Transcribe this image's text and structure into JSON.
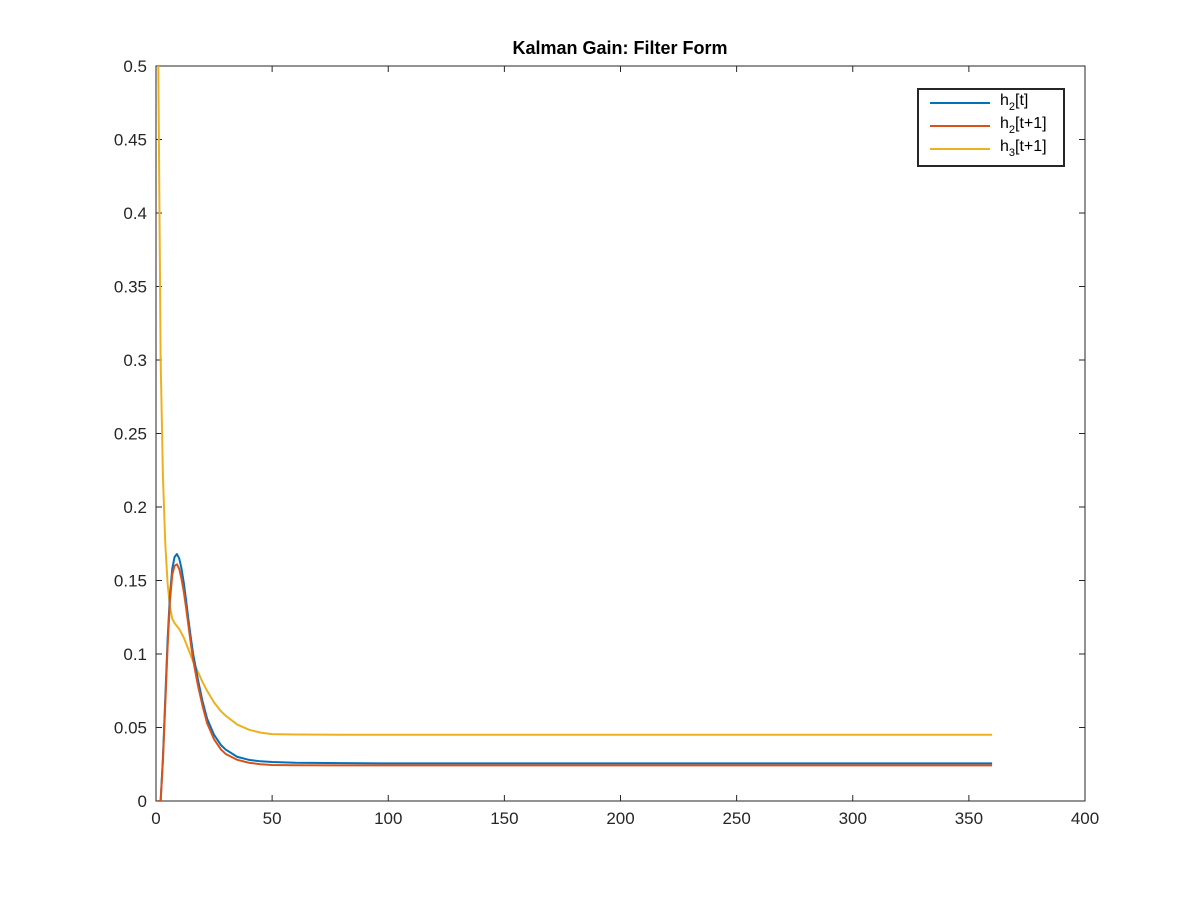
{
  "chart_data": {
    "type": "line",
    "title": "Kalman Gain: Filter Form",
    "xlabel": "",
    "ylabel": "",
    "xlim": [
      0,
      400
    ],
    "ylim": [
      0,
      0.5
    ],
    "xticks": [
      0,
      50,
      100,
      150,
      200,
      250,
      300,
      350,
      400
    ],
    "yticks": [
      0,
      0.05,
      0.1,
      0.15,
      0.2,
      0.25,
      0.3,
      0.35,
      0.4,
      0.45,
      0.5
    ],
    "xtick_labels": [
      "0",
      "50",
      "100",
      "150",
      "200",
      "250",
      "300",
      "350",
      "400"
    ],
    "ytick_labels": [
      "0",
      "0.05",
      "0.1",
      "0.15",
      "0.2",
      "0.25",
      "0.3",
      "0.35",
      "0.4",
      "0.45",
      "0.5"
    ],
    "grid": false,
    "legend_position": "top-right",
    "series": [
      {
        "legend": {
          "base": "h",
          "sub": "2",
          "suffix": "[t]"
        },
        "color": "#0072BD",
        "points": [
          [
            1,
            0
          ],
          [
            2,
            0
          ],
          [
            3,
            0.03
          ],
          [
            4,
            0.07
          ],
          [
            5,
            0.11
          ],
          [
            6,
            0.14
          ],
          [
            7,
            0.158
          ],
          [
            8,
            0.166
          ],
          [
            9,
            0.168
          ],
          [
            10,
            0.165
          ],
          [
            11,
            0.158
          ],
          [
            12,
            0.148
          ],
          [
            13,
            0.136
          ],
          [
            14,
            0.123
          ],
          [
            15,
            0.111
          ],
          [
            16,
            0.1
          ],
          [
            18,
            0.083
          ],
          [
            20,
            0.068
          ],
          [
            22,
            0.056
          ],
          [
            25,
            0.045
          ],
          [
            28,
            0.038
          ],
          [
            30,
            0.035
          ],
          [
            35,
            0.03
          ],
          [
            40,
            0.028
          ],
          [
            45,
            0.027
          ],
          [
            50,
            0.0265
          ],
          [
            60,
            0.026
          ],
          [
            80,
            0.0258
          ],
          [
            100,
            0.0256
          ],
          [
            150,
            0.0256
          ],
          [
            200,
            0.0256
          ],
          [
            250,
            0.0256
          ],
          [
            300,
            0.0256
          ],
          [
            360,
            0.0256
          ]
        ]
      },
      {
        "legend": {
          "base": "h",
          "sub": "2",
          "suffix": "[t+1]"
        },
        "color": "#D95319",
        "points": [
          [
            1,
            0
          ],
          [
            2,
            0
          ],
          [
            3,
            0.028
          ],
          [
            4,
            0.066
          ],
          [
            5,
            0.105
          ],
          [
            6,
            0.136
          ],
          [
            7,
            0.154
          ],
          [
            8,
            0.16
          ],
          [
            9,
            0.161
          ],
          [
            10,
            0.158
          ],
          [
            11,
            0.151
          ],
          [
            12,
            0.142
          ],
          [
            13,
            0.131
          ],
          [
            14,
            0.119
          ],
          [
            15,
            0.107
          ],
          [
            16,
            0.096
          ],
          [
            18,
            0.079
          ],
          [
            20,
            0.065
          ],
          [
            22,
            0.053
          ],
          [
            25,
            0.042
          ],
          [
            28,
            0.035
          ],
          [
            30,
            0.032
          ],
          [
            35,
            0.028
          ],
          [
            40,
            0.026
          ],
          [
            45,
            0.025
          ],
          [
            50,
            0.0245
          ],
          [
            60,
            0.0243
          ],
          [
            80,
            0.0242
          ],
          [
            100,
            0.0242
          ],
          [
            150,
            0.0242
          ],
          [
            200,
            0.0242
          ],
          [
            250,
            0.0242
          ],
          [
            300,
            0.0242
          ],
          [
            360,
            0.0242
          ]
        ]
      },
      {
        "legend": {
          "base": "h",
          "sub": "3",
          "suffix": "[t+1]"
        },
        "color": "#EDB120",
        "points": [
          [
            1,
            0.5
          ],
          [
            2,
            0.3
          ],
          [
            3,
            0.22
          ],
          [
            4,
            0.175
          ],
          [
            5,
            0.148
          ],
          [
            6,
            0.132
          ],
          [
            7,
            0.124
          ],
          [
            8,
            0.121
          ],
          [
            9,
            0.119
          ],
          [
            10,
            0.117
          ],
          [
            11,
            0.114
          ],
          [
            12,
            0.111
          ],
          [
            13,
            0.107
          ],
          [
            14,
            0.103
          ],
          [
            15,
            0.099
          ],
          [
            16,
            0.095
          ],
          [
            18,
            0.088
          ],
          [
            20,
            0.081
          ],
          [
            22,
            0.075
          ],
          [
            25,
            0.067
          ],
          [
            28,
            0.061
          ],
          [
            30,
            0.058
          ],
          [
            35,
            0.052
          ],
          [
            40,
            0.0485
          ],
          [
            45,
            0.0465
          ],
          [
            50,
            0.0455
          ],
          [
            60,
            0.0452
          ],
          [
            80,
            0.0451
          ],
          [
            100,
            0.0451
          ],
          [
            150,
            0.0451
          ],
          [
            200,
            0.0451
          ],
          [
            250,
            0.0451
          ],
          [
            300,
            0.0451
          ],
          [
            360,
            0.0451
          ]
        ]
      }
    ]
  }
}
